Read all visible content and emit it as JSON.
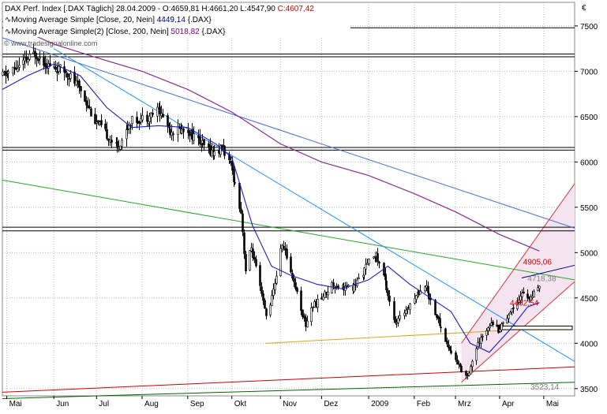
{
  "legend": {
    "line1": {
      "prefix": "DAX Perf. Index [.DAX Täglich] 28.04.2009 - ",
      "open": "O:4659,81",
      "high": "H:4661,20",
      "low": "L:4547,90",
      "close": "C:4607,42",
      "close_color": "#cc0000"
    },
    "line2": {
      "text": "Moving Average Simple [Close, 20, Nein]",
      "value": "4449,14",
      "suffix": "{.DAX}",
      "value_color": "#00008b"
    },
    "line3": {
      "text": "Moving Average Simple(2) [Close, 200, Nein]",
      "value": "5018,82",
      "suffix": "{.DAX}",
      "value_color": "#800080"
    },
    "watermark": "© www.tradesignalonline.com"
  },
  "chart_data": {
    "type": "candlestick",
    "currency": "€",
    "ylim": [
      3420,
      7760
    ],
    "y_ticks": [
      {
        "value": 3500,
        "label": "3500"
      },
      {
        "value": 4000,
        "label": "4000"
      },
      {
        "value": 4500,
        "label": "4500"
      },
      {
        "value": 5000,
        "label": "5000"
      },
      {
        "value": 5500,
        "label": "5500"
      },
      {
        "value": 6000,
        "label": "6000"
      },
      {
        "value": 6500,
        "label": "6500"
      },
      {
        "value": 7000,
        "label": "7000"
      },
      {
        "value": 7500,
        "label": "7500"
      }
    ],
    "x_ticks": [
      {
        "date": "2008-05-01",
        "label": "Mai"
      },
      {
        "date": "2008-06-02",
        "label": "Jun"
      },
      {
        "date": "2008-07-01",
        "label": "Jul"
      },
      {
        "date": "2008-08-01",
        "label": "Aug"
      },
      {
        "date": "2008-09-01",
        "label": "Sep"
      },
      {
        "date": "2008-10-01",
        "label": "Okt"
      },
      {
        "date": "2008-11-03",
        "label": "Nov"
      },
      {
        "date": "2008-12-01",
        "label": "Dez"
      },
      {
        "date": "2009-01-02",
        "label": "2009"
      },
      {
        "date": "2009-02-02",
        "label": "Feb"
      },
      {
        "date": "2009-03-02",
        "label": "Mrz"
      },
      {
        "date": "2009-04-01",
        "label": "Apr"
      },
      {
        "date": "2009-05-01",
        "label": "Mai"
      }
    ],
    "xlim": [
      "2008-04-28",
      "2009-05-22"
    ],
    "price_path": [
      [
        "2008-04-28",
        6950
      ],
      [
        "2008-05-09",
        7050
      ],
      [
        "2008-05-20",
        7200
      ],
      [
        "2008-05-30",
        7050
      ],
      [
        "2008-06-10",
        7000
      ],
      [
        "2008-06-20",
        6800
      ],
      [
        "2008-06-30",
        6450
      ],
      [
        "2008-07-08",
        6300
      ],
      [
        "2008-07-15",
        6150
      ],
      [
        "2008-07-24",
        6450
      ],
      [
        "2008-08-05",
        6500
      ],
      [
        "2008-08-12",
        6580
      ],
      [
        "2008-08-20",
        6350
      ],
      [
        "2008-09-01",
        6350
      ],
      [
        "2008-09-10",
        6200
      ],
      [
        "2008-09-18",
        6100
      ],
      [
        "2008-09-25",
        6150
      ],
      [
        "2008-10-01",
        5900
      ],
      [
        "2008-10-07",
        5450
      ],
      [
        "2008-10-10",
        4800
      ],
      [
        "2008-10-14",
        5050
      ],
      [
        "2008-10-24",
        4300
      ],
      [
        "2008-10-28",
        4500
      ],
      [
        "2008-11-04",
        5100
      ],
      [
        "2008-11-10",
        4800
      ],
      [
        "2008-11-20",
        4200
      ],
      [
        "2008-11-24",
        4400
      ],
      [
        "2008-12-01",
        4500
      ],
      [
        "2008-12-08",
        4650
      ],
      [
        "2008-12-22",
        4600
      ],
      [
        "2009-01-06",
        5000
      ],
      [
        "2009-01-12",
        4750
      ],
      [
        "2009-01-20",
        4200
      ],
      [
        "2009-01-28",
        4400
      ],
      [
        "2009-02-09",
        4650
      ],
      [
        "2009-02-18",
        4250
      ],
      [
        "2009-02-25",
        3950
      ],
      [
        "2009-03-06",
        3700
      ],
      [
        "2009-03-10",
        3650
      ],
      [
        "2009-03-16",
        3950
      ],
      [
        "2009-03-26",
        4250
      ],
      [
        "2009-03-31",
        4150
      ],
      [
        "2009-04-08",
        4350
      ],
      [
        "2009-04-16",
        4550
      ],
      [
        "2009-04-22",
        4500
      ],
      [
        "2009-04-28",
        4607
      ]
    ],
    "sma20": [
      [
        "2008-04-28",
        6800
      ],
      [
        "2008-05-15",
        6950
      ],
      [
        "2008-06-02",
        7080
      ],
      [
        "2008-06-20",
        6950
      ],
      [
        "2008-07-08",
        6600
      ],
      [
        "2008-07-25",
        6380
      ],
      [
        "2008-08-12",
        6400
      ],
      [
        "2008-09-01",
        6380
      ],
      [
        "2008-09-20",
        6200
      ],
      [
        "2008-10-01",
        6050
      ],
      [
        "2008-10-15",
        5300
      ],
      [
        "2008-10-28",
        4850
      ],
      [
        "2008-11-10",
        4750
      ],
      [
        "2008-11-28",
        4650
      ],
      [
        "2008-12-15",
        4600
      ],
      [
        "2009-01-02",
        4700
      ],
      [
        "2009-01-15",
        4850
      ],
      [
        "2009-01-30",
        4650
      ],
      [
        "2009-02-13",
        4500
      ],
      [
        "2009-02-27",
        4350
      ],
      [
        "2009-03-12",
        4000
      ],
      [
        "2009-03-25",
        3900
      ],
      [
        "2009-04-08",
        4150
      ],
      [
        "2009-04-20",
        4400
      ],
      [
        "2009-04-28",
        4449
      ]
    ],
    "sma200": [
      [
        "2008-04-28",
        7550
      ],
      [
        "2008-06-02",
        7300
      ],
      [
        "2008-07-01",
        7150
      ],
      [
        "2008-08-01",
        7000
      ],
      [
        "2008-09-01",
        6800
      ],
      [
        "2008-10-01",
        6550
      ],
      [
        "2008-11-03",
        6200
      ],
      [
        "2008-12-01",
        6000
      ],
      [
        "2009-01-02",
        5850
      ],
      [
        "2009-02-02",
        5650
      ],
      [
        "2009-03-02",
        5450
      ],
      [
        "2009-04-01",
        5200
      ],
      [
        "2009-04-28",
        5018
      ]
    ],
    "horizontal_levels": [
      {
        "value": 7480,
        "color": "#000000"
      },
      {
        "value": 7190,
        "color": "#000000"
      },
      {
        "value": 7160,
        "color": "#000000"
      },
      {
        "value": 6160,
        "color": "#000000"
      },
      {
        "value": 6130,
        "color": "#000000"
      },
      {
        "value": 5280,
        "color": "#000000"
      },
      {
        "value": 5240,
        "color": "#000000"
      }
    ],
    "trend_lines": [
      {
        "from": [
          "2008-04-28",
          7370
        ],
        "to": [
          "2009-05-22",
          5270
        ],
        "color": "#4169e1"
      },
      {
        "from": [
          "2008-04-28",
          5800
        ],
        "to": [
          "2009-05-22",
          4700
        ],
        "color": "#22aa22"
      },
      {
        "from": [
          "2008-06-02",
          7250
        ],
        "to": [
          "2009-05-22",
          3800
        ],
        "color": "#1e90ff"
      },
      {
        "from": [
          "2008-04-28",
          3460
        ],
        "to": [
          "2009-05-22",
          3740
        ],
        "color": "#cc0000"
      },
      {
        "from": [
          "2008-04-28",
          3390
        ],
        "to": [
          "2009-05-22",
          3570
        ],
        "color": "#006400"
      },
      {
        "from": [
          "2008-10-24",
          4000
        ],
        "to": [
          "2009-04-02",
          4140
        ],
        "color": "#daa520"
      },
      {
        "from": [
          "2009-04-16",
          4720
        ],
        "to": [
          "2009-05-22",
          4860
        ],
        "color": "#000080"
      }
    ],
    "channel": {
      "lower": {
        "from": [
          "2009-03-06",
          3570
        ],
        "to": [
          "2009-05-22",
          4680
        ]
      },
      "upper": {
        "from": [
          "2009-03-06",
          4000
        ],
        "to": [
          "2009-05-22",
          5760
        ]
      },
      "fill": "#f3e4f0",
      "stroke": "#dd3333"
    },
    "annotations": [
      {
        "label": "4905,06",
        "value": 4905.06,
        "date": "2009-04-17",
        "color": "#cc0000"
      },
      {
        "label": "4718,38",
        "value": 4718.38,
        "date": "2009-04-20",
        "color": "#808080"
      },
      {
        "label": "4452,54",
        "value": 4452.54,
        "date": "2009-04-08",
        "color": "#cc0000"
      },
      {
        "label": "3523,14",
        "value": 3523.14,
        "date": "2009-04-22",
        "color": "#808080"
      }
    ],
    "target_box": {
      "from_date": "2009-04-01",
      "to_date": "2009-05-22",
      "low": 4150,
      "high": 4190
    },
    "colors": {
      "candle_up": "#000000",
      "candle_down": "#cc0000",
      "sma20": "#1a1acc",
      "sma200": "#8b2a8b"
    }
  }
}
